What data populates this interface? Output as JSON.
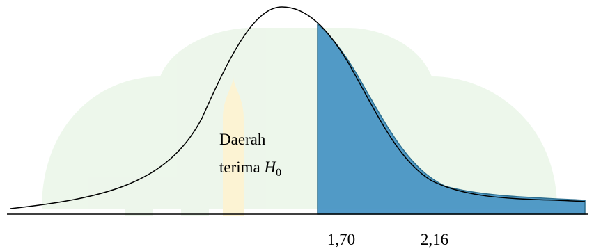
{
  "region_label": {
    "line1": "Daerah",
    "line2": "terima",
    "symbol": "H",
    "subscript": "0"
  },
  "ticks": [
    "1,70",
    "2,16"
  ]
}
